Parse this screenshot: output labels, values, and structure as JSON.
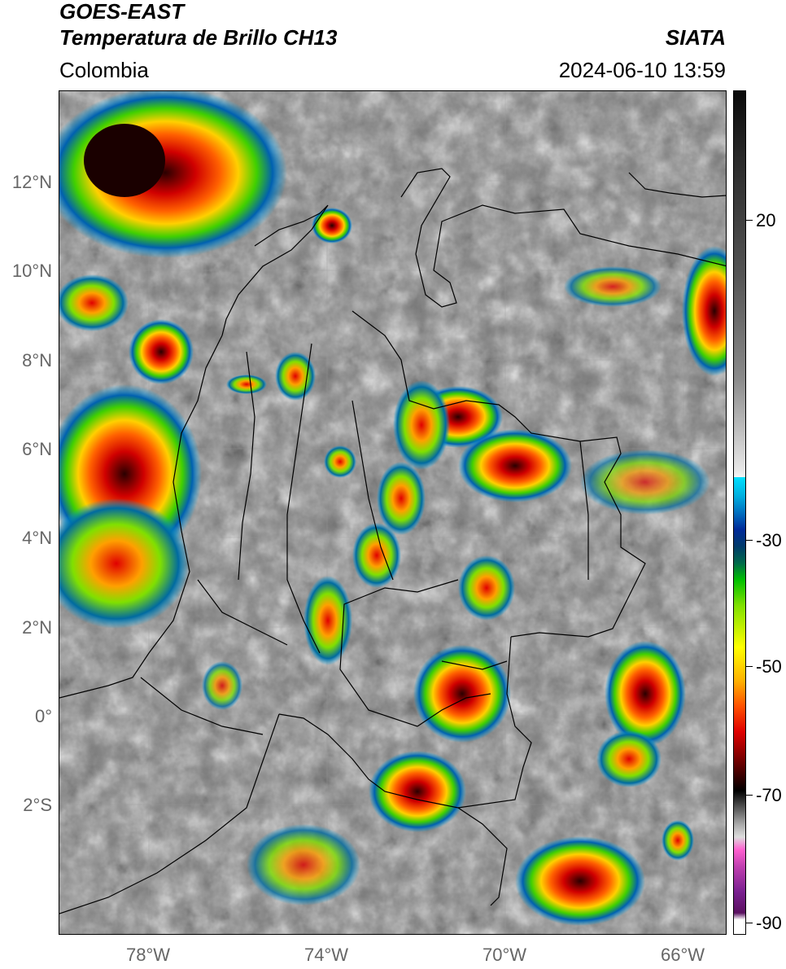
{
  "header": {
    "satellite": "GOES-EAST",
    "product": "Temperatura de Brillo CH13",
    "organization": "SIATA",
    "region": "Colombia",
    "datetime": "2024-06-10 13:59"
  },
  "map": {
    "lat_labels": [
      "12°N",
      "10°N",
      "8°N",
      "6°N",
      "4°N",
      "2°N",
      "0°",
      "2°S"
    ],
    "lon_labels": [
      "78°W",
      "74°W",
      "70°W",
      "66°W"
    ],
    "lat_range": [
      -5,
      14
    ],
    "lon_range": [
      -80,
      -65
    ]
  },
  "colorbar": {
    "tick_labels": [
      "20",
      "-30",
      "-50",
      "-70",
      "-90"
    ],
    "colors": {
      "warm_high": "#0a0a0a",
      "cold_cyan": "#00e0ff",
      "blue": "#002a9a",
      "green": "#00c000",
      "yellow": "#ffff00",
      "red": "#e00000",
      "black": "#000000",
      "magenta": "#ff60d0",
      "purple": "#5a1060"
    }
  }
}
